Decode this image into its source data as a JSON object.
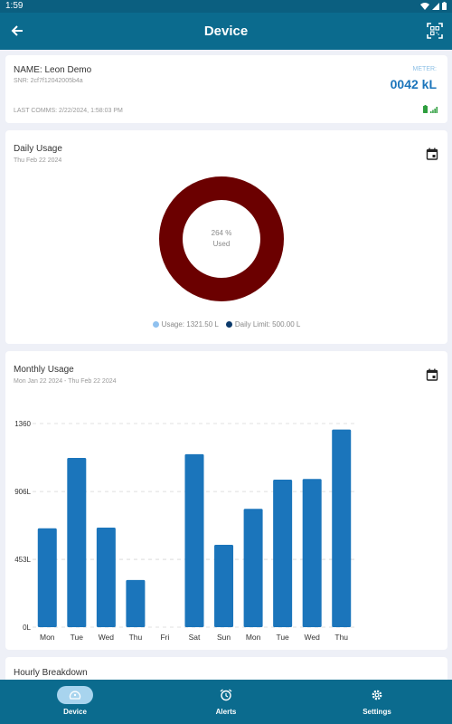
{
  "status_bar": {
    "time": "1:59"
  },
  "app_bar": {
    "title": "Device"
  },
  "device": {
    "name": "NAME: Leon Demo",
    "snr": "SNR: 2cf7f12042005b4a",
    "last_comms": "LAST COMMS: 2/22/2024, 1:58:03 PM",
    "meter_label": "METER:",
    "meter_value": "0042 kL"
  },
  "daily_usage": {
    "title": "Daily Usage",
    "date": "Thu Feb 22 2024",
    "percent_text": "264 %",
    "used_label": "Used",
    "legend_usage": "Usage: 1321.50 L",
    "legend_limit": "Daily Limit: 500.00 L"
  },
  "monthly_usage": {
    "title": "Monthly Usage",
    "date_range": "Mon Jan 22 2024 - Thu Feb 22 2024"
  },
  "hourly": {
    "title": "Hourly Breakdown"
  },
  "nav": {
    "device": "Device",
    "alerts": "Alerts",
    "settings": "Settings"
  },
  "colors": {
    "primary": "#0b6b8e",
    "bar": "#1b75bb",
    "donut": "#6b0000",
    "usage_dot": "#8fc1ef",
    "limit_dot": "#0b3a6b"
  },
  "chart_data": {
    "type": "bar",
    "categories": [
      "Mon",
      "Tue",
      "Wed",
      "Thu",
      "Fri",
      "Sat",
      "Sun",
      "Mon",
      "Tue",
      "Wed",
      "Thu"
    ],
    "values": [
      660,
      1130,
      665,
      315,
      0,
      1155,
      550,
      790,
      985,
      990,
      1320
    ],
    "yticks": [
      "0L",
      "453L",
      "906L",
      "1360"
    ],
    "ytick_values": [
      0,
      453,
      906,
      1360
    ],
    "ylim": [
      0,
      1360
    ]
  }
}
